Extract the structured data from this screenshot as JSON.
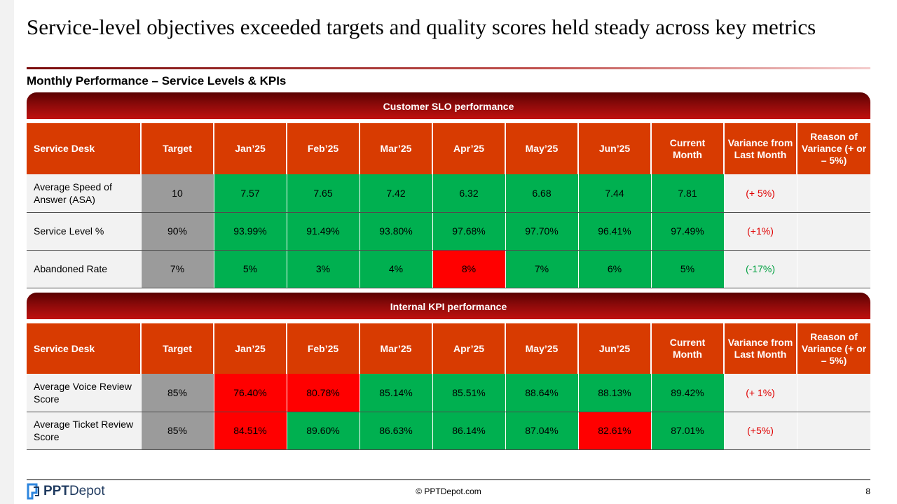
{
  "title": "Service-level objectives exceeded targets and quality scores held steady across key metrics",
  "subtitle": "Monthly Performance – Service Levels & KPIs",
  "headers": [
    "Service Desk",
    "Target",
    "Jan’25",
    "Feb’25",
    "Mar’25",
    "Apr’25",
    "May’25",
    "Jun’25",
    "Current Month",
    "Variance from Last Month",
    "Reason of Variance (+ or – 5%)"
  ],
  "slo": {
    "band": "Customer SLO performance",
    "rows": [
      {
        "name": "Average Speed of Answer (ASA)",
        "target": "10",
        "values": [
          "7.57",
          "7.65",
          "7.42",
          "6.32",
          "6.68",
          "7.44",
          "7.81"
        ],
        "statuses": [
          "g",
          "g",
          "g",
          "g",
          "g",
          "g",
          "g"
        ],
        "variance": "(+ 5%)",
        "variance_color": "red",
        "reason": ""
      },
      {
        "name": "Service Level %",
        "target": "90%",
        "values": [
          "93.99%",
          "91.49%",
          "93.80%",
          "97.68%",
          "97.70%",
          "96.41%",
          "97.49%"
        ],
        "statuses": [
          "g",
          "g",
          "g",
          "g",
          "g",
          "g",
          "g"
        ],
        "variance": "(+1%)",
        "variance_color": "red",
        "reason": ""
      },
      {
        "name": "Abandoned Rate",
        "target": "7%",
        "values": [
          "5%",
          "3%",
          "4%",
          "8%",
          "7%",
          "6%",
          "5%"
        ],
        "statuses": [
          "g",
          "g",
          "g",
          "r",
          "g",
          "g",
          "g"
        ],
        "variance": "(-17%)",
        "variance_color": "green",
        "reason": ""
      }
    ]
  },
  "kpi": {
    "band": "Internal KPI performance",
    "rows": [
      {
        "name": "Average Voice Review Score",
        "target": "85%",
        "values": [
          "76.40%",
          "80.78%",
          "85.14%",
          "85.51%",
          "88.64%",
          "88.13%",
          "89.42%"
        ],
        "statuses": [
          "r",
          "r",
          "g",
          "g",
          "g",
          "g",
          "g"
        ],
        "variance": "(+ 1%)",
        "variance_color": "red",
        "reason": ""
      },
      {
        "name": "Average Ticket Review Score",
        "target": "85%",
        "values": [
          "84.51%",
          "89.60%",
          "86.63%",
          "86.14%",
          "87.04%",
          "82.61%",
          "87.01%"
        ],
        "statuses": [
          "r",
          "g",
          "g",
          "g",
          "g",
          "r",
          "g"
        ],
        "variance": "(+5%)",
        "variance_color": "red",
        "reason": ""
      }
    ]
  },
  "colors": {
    "header": "#d83b01",
    "green": "#00b050",
    "red": "#ff0000",
    "target_gray": "#9b9b9b",
    "band_dark": "#5a0000"
  },
  "footer": {
    "logo_bold": "PPT",
    "logo_thin": "Depot",
    "copyright": "© PPTDepot.com",
    "page_number": "8"
  }
}
